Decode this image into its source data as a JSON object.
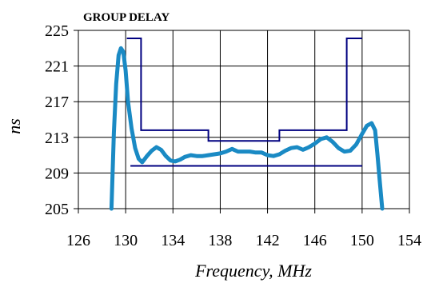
{
  "chart_data": {
    "type": "line",
    "title": "GROUP DELAY",
    "xlabel": "Frequency, MHz",
    "ylabel": "ns",
    "xlim": [
      126,
      154
    ],
    "ylim": [
      205,
      225
    ],
    "x_ticks": [
      126,
      130,
      134,
      138,
      142,
      146,
      150,
      154
    ],
    "y_ticks": [
      205,
      209,
      213,
      217,
      221,
      225
    ],
    "x_tick_labels": [
      "126",
      "130",
      "134",
      "138",
      "142",
      "146",
      "150",
      "154"
    ],
    "y_tick_labels": [
      "205",
      "209",
      "213",
      "217",
      "221",
      "225"
    ],
    "grid": true,
    "colors": {
      "measured": "#1a8ac4",
      "mask": "#000080",
      "grid": "#000000"
    },
    "series": [
      {
        "role": "upper-mask",
        "x": [
          130.1,
          131.3,
          131.3,
          137.0,
          137.0,
          143.0,
          143.0,
          148.7,
          148.7,
          150.0
        ],
        "y": [
          224.1,
          224.1,
          213.8,
          213.8,
          212.6,
          212.6,
          213.8,
          213.8,
          224.1,
          224.1
        ]
      },
      {
        "role": "lower-mask",
        "x": [
          130.4,
          150.0
        ],
        "y": [
          209.8,
          209.8
        ]
      },
      {
        "role": "measured",
        "x": [
          128.8,
          129.0,
          129.2,
          129.4,
          129.6,
          129.8,
          130.0,
          130.2,
          130.5,
          130.8,
          131.1,
          131.4,
          131.8,
          132.2,
          132.6,
          133.0,
          133.4,
          133.8,
          134.2,
          134.6,
          135.0,
          135.5,
          136.0,
          136.5,
          137.0,
          137.5,
          138.0,
          138.5,
          139.0,
          139.5,
          140.0,
          140.5,
          141.0,
          141.5,
          142.0,
          142.5,
          143.0,
          143.5,
          144.0,
          144.5,
          145.0,
          145.5,
          146.0,
          146.5,
          147.0,
          147.5,
          148.0,
          148.5,
          149.0,
          149.5,
          150.0,
          150.4,
          150.8,
          151.1,
          151.3,
          151.5,
          151.7
        ],
        "y": [
          205.0,
          213.5,
          219.0,
          222.2,
          223.0,
          222.6,
          220.5,
          217.0,
          214.0,
          211.8,
          210.6,
          210.2,
          210.9,
          211.5,
          211.9,
          211.6,
          210.9,
          210.4,
          210.3,
          210.5,
          210.8,
          211.0,
          210.9,
          210.9,
          211.0,
          211.1,
          211.2,
          211.4,
          211.7,
          211.4,
          211.4,
          211.4,
          211.3,
          211.3,
          211.0,
          210.9,
          211.1,
          211.5,
          211.8,
          211.9,
          211.6,
          211.9,
          212.3,
          212.8,
          213.0,
          212.5,
          211.8,
          211.4,
          211.5,
          212.2,
          213.4,
          214.3,
          214.6,
          213.8,
          211.0,
          208.0,
          205.0
        ]
      }
    ]
  }
}
